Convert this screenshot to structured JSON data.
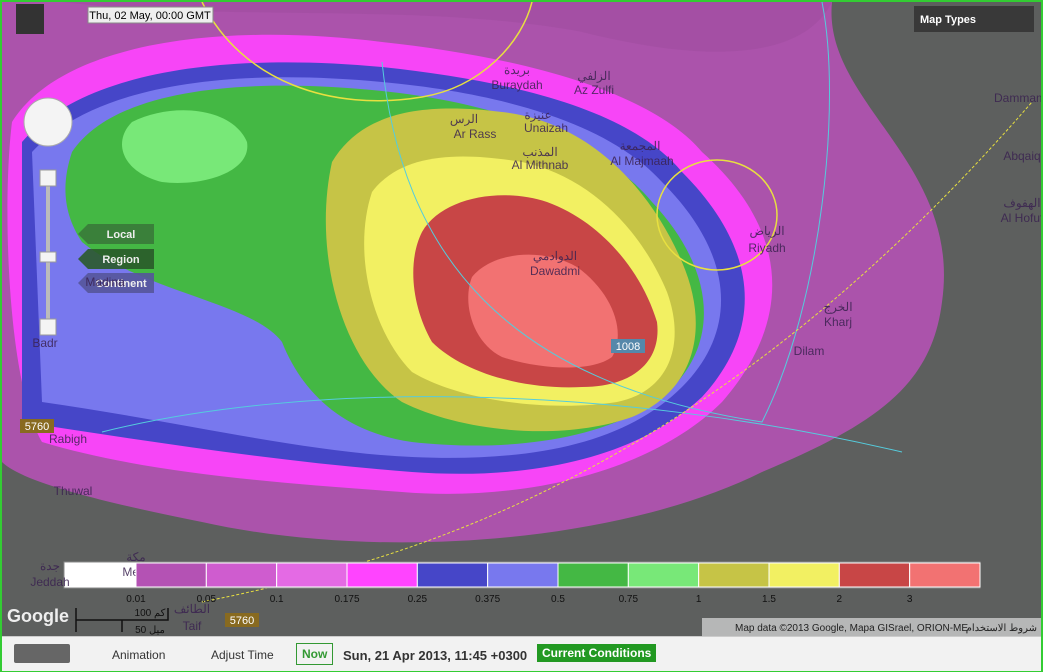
{
  "header": {
    "timestamp": "Thu, 02 May, 00:00 GMT",
    "map_types": "Map Types"
  },
  "zoom_levels": [
    "Local",
    "Region",
    "Continent"
  ],
  "places": [
    "Buraydah",
    "بريدة",
    "Az Zulfi",
    "الزلفي",
    "Ar Rass",
    "الرس",
    "Unaizah",
    "عنيزة",
    "Al Mithnab",
    "المذنب",
    "Al Majmaah",
    "المجمعة",
    "Riyadh",
    "الرياض",
    "Dawadmi",
    "الدوادمي",
    "Kharj",
    "الخرج",
    "Dilam",
    "Madina",
    "Badr",
    "Rabigh",
    "Thuwal",
    "Jeddah",
    "جدة",
    "Mecca",
    "مكة",
    "Taif",
    "الطائف",
    "Dammam",
    "Abqaiq",
    "Al Hofuf",
    "الهفوف"
  ],
  "contour_labels": [
    "1008",
    "5760",
    "5760"
  ],
  "legend": [
    {
      "label": "0.01",
      "color": "#b452b4"
    },
    {
      "label": "0.05",
      "color": "#cf5ccf"
    },
    {
      "label": "0.1",
      "color": "#e46ae4"
    },
    {
      "label": "0.175",
      "color": "#ff44ff"
    },
    {
      "label": "0.25",
      "color": "#4646c8"
    },
    {
      "label": "0.375",
      "color": "#7878ee"
    },
    {
      "label": "0.5",
      "color": "#44b844"
    },
    {
      "label": "0.75",
      "color": "#78e878"
    },
    {
      "label": "1",
      "color": "#c6c446"
    },
    {
      "label": "1.5",
      "color": "#f2f062"
    },
    {
      "label": "2",
      "color": "#c84646"
    },
    {
      "label": "3",
      "color": "#f27272"
    }
  ],
  "scale": [
    "100 كم",
    "50 ميل"
  ],
  "attribution": {
    "logo": "Google",
    "text": "Map data ©2013 Google, Mapa GISrael, ORION-ME",
    "terms": "شروط الاستخدام"
  },
  "footer": {
    "animation": "Animation",
    "adjust_time": "Adjust Time",
    "now": "Now",
    "current_time": "Sun, 21 Apr 2013, 11:45 +0300",
    "current_conditions": "Current Conditions"
  }
}
